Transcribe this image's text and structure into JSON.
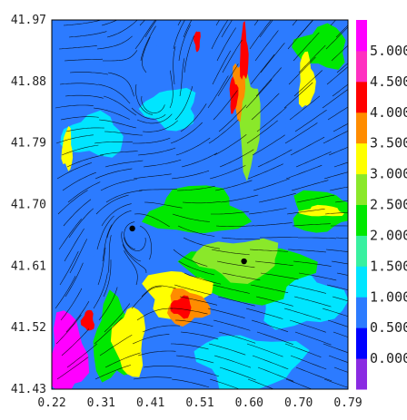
{
  "chart_data": {
    "type": "heatmap",
    "title": "",
    "xlabel": "",
    "ylabel": "",
    "x_ticks": [
      "0.22",
      "0.31",
      "0.41",
      "0.51",
      "0.60",
      "0.70",
      "0.79"
    ],
    "y_ticks": [
      "41.97",
      "41.88",
      "41.79",
      "41.70",
      "41.61",
      "41.52",
      "41.43"
    ],
    "xlim": [
      0.22,
      0.79
    ],
    "ylim": [
      41.43,
      41.97
    ],
    "colorbar": {
      "labels": [
        "0.000",
        "0.500",
        "1.000",
        "1.500",
        "2.000",
        "2.500",
        "3.000",
        "3.500",
        "4.000",
        "4.500",
        "5.000"
      ],
      "colors": [
        "#8a2be2",
        "#0000ff",
        "#2c7bff",
        "#00e5ff",
        "#38f0a0",
        "#00e800",
        "#8ae82a",
        "#ffff00",
        "#ff8c00",
        "#ff0000",
        "#ff30c0",
        "#ff00ff"
      ]
    },
    "points": [
      {
        "x": 0.375,
        "y": 41.665
      },
      {
        "x": 0.59,
        "y": 41.617
      }
    ],
    "background_color": "#2c7bff",
    "regions": [
      {
        "level": 0.6,
        "cx": 0.27,
        "cy": 41.9,
        "rx": 0.05,
        "ry": 0.04
      },
      {
        "level": 0.6,
        "cx": 0.4,
        "cy": 41.9,
        "rx": 0.05,
        "ry": 0.05
      },
      {
        "level": 0.6,
        "cx": 0.56,
        "cy": 41.86,
        "rx": 0.03,
        "ry": 0.025
      },
      {
        "level": 0.6,
        "cx": 0.62,
        "cy": 41.79,
        "rx": 0.06,
        "ry": 0.05
      },
      {
        "level": 0.6,
        "cx": 0.73,
        "cy": 41.79,
        "rx": 0.04,
        "ry": 0.04
      },
      {
        "level": 0.6,
        "cx": 0.31,
        "cy": 41.66,
        "rx": 0.06,
        "ry": 0.03
      },
      {
        "level": 0.6,
        "cx": 0.25,
        "cy": 41.86,
        "rx": 0.03,
        "ry": 0.02
      },
      {
        "level": 1.2,
        "cx": 0.3,
        "cy": 41.8,
        "rx": 0.06,
        "ry": 0.03
      },
      {
        "level": 1.2,
        "cx": 0.7,
        "cy": 41.56,
        "rx": 0.08,
        "ry": 0.04
      },
      {
        "level": 1.2,
        "cx": 0.6,
        "cy": 41.47,
        "rx": 0.1,
        "ry": 0.04
      },
      {
        "level": 1.2,
        "cx": 0.45,
        "cy": 41.84,
        "rx": 0.05,
        "ry": 0.03
      },
      {
        "level": 2.0,
        "cx": 0.5,
        "cy": 41.69,
        "rx": 0.09,
        "ry": 0.035
      },
      {
        "level": 2.0,
        "cx": 0.74,
        "cy": 41.69,
        "rx": 0.06,
        "ry": 0.03
      },
      {
        "level": 2.0,
        "cx": 0.6,
        "cy": 41.6,
        "rx": 0.12,
        "ry": 0.04
      },
      {
        "level": 2.0,
        "cx": 0.74,
        "cy": 41.93,
        "rx": 0.05,
        "ry": 0.03
      },
      {
        "level": 2.0,
        "cx": 0.34,
        "cy": 41.5,
        "rx": 0.04,
        "ry": 0.06
      },
      {
        "level": 2.6,
        "cx": 0.6,
        "cy": 41.82,
        "rx": 0.02,
        "ry": 0.07
      },
      {
        "level": 2.6,
        "cx": 0.58,
        "cy": 41.62,
        "rx": 0.08,
        "ry": 0.03
      },
      {
        "level": 3.2,
        "cx": 0.25,
        "cy": 41.78,
        "rx": 0.01,
        "ry": 0.03
      },
      {
        "level": 3.2,
        "cx": 0.71,
        "cy": 41.88,
        "rx": 0.015,
        "ry": 0.04
      },
      {
        "level": 3.2,
        "cx": 0.46,
        "cy": 41.57,
        "rx": 0.06,
        "ry": 0.035
      },
      {
        "level": 3.2,
        "cx": 0.37,
        "cy": 41.5,
        "rx": 0.03,
        "ry": 0.05
      },
      {
        "level": 3.2,
        "cx": 0.74,
        "cy": 41.69,
        "rx": 0.04,
        "ry": 0.008
      },
      {
        "level": 3.8,
        "cx": 0.48,
        "cy": 41.55,
        "rx": 0.04,
        "ry": 0.025
      },
      {
        "level": 3.8,
        "cx": 0.58,
        "cy": 41.87,
        "rx": 0.012,
        "ry": 0.04
      },
      {
        "level": 4.2,
        "cx": 0.47,
        "cy": 41.55,
        "rx": 0.02,
        "ry": 0.015
      },
      {
        "level": 4.2,
        "cx": 0.59,
        "cy": 41.92,
        "rx": 0.008,
        "ry": 0.04
      },
      {
        "level": 4.2,
        "cx": 0.57,
        "cy": 41.86,
        "rx": 0.008,
        "ry": 0.025
      },
      {
        "level": 4.2,
        "cx": 0.5,
        "cy": 41.94,
        "rx": 0.006,
        "ry": 0.015
      },
      {
        "level": 4.2,
        "cx": 0.29,
        "cy": 41.53,
        "rx": 0.012,
        "ry": 0.015
      },
      {
        "level": 5.0,
        "cx": 0.25,
        "cy": 41.48,
        "rx": 0.035,
        "ry": 0.06
      }
    ]
  }
}
